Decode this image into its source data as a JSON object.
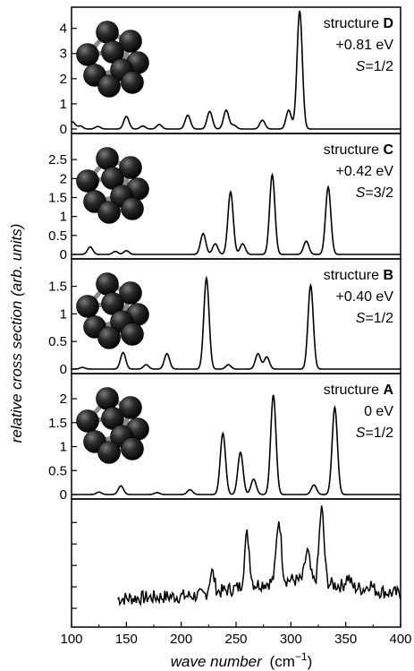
{
  "chart_data": {
    "type": "line",
    "xlabel": "wave number",
    "xlabel_unit_prefix": "(cm",
    "xlabel_unit_exp": "−1",
    "xlabel_unit_suffix": ")",
    "ylabel": "relative cross section (arb. units)",
    "xlim": [
      100,
      400
    ],
    "x_ticks": [
      100,
      150,
      200,
      250,
      300,
      350,
      400
    ],
    "peak_width_cm1": 2.4,
    "panels": [
      {
        "id": "D",
        "label_prefix": "structure",
        "structure": "D",
        "energy": "+0.81 eV",
        "spin_prefix": "S",
        "spin_value": "=1/2",
        "ylim": [
          0,
          4.7
        ],
        "y_ticks": [
          0,
          1,
          2,
          3,
          4
        ],
        "peaks": [
          [
            101,
            0.28
          ],
          [
            108,
            0.12
          ],
          [
            124,
            0.1
          ],
          [
            150,
            0.5
          ],
          [
            165,
            0.12
          ],
          [
            180,
            0.18
          ],
          [
            206,
            0.55
          ],
          [
            226,
            0.7
          ],
          [
            241,
            0.75
          ],
          [
            248,
            0.15
          ],
          [
            274,
            0.35
          ],
          [
            298,
            0.75
          ],
          [
            308,
            4.7
          ]
        ]
      },
      {
        "id": "C",
        "label_prefix": "structure",
        "structure": "C",
        "energy": "+0.42 eV",
        "spin_prefix": "S",
        "spin_value": "=3/2",
        "ylim": [
          0,
          3.0
        ],
        "y_ticks": [
          0,
          0.5,
          1,
          1.5,
          2,
          2.5
        ],
        "peaks": [
          [
            117,
            0.2
          ],
          [
            140,
            0.08
          ],
          [
            150,
            0.1
          ],
          [
            220,
            0.55
          ],
          [
            231,
            0.28
          ],
          [
            245,
            1.65
          ],
          [
            256,
            0.28
          ],
          [
            283,
            2.1
          ],
          [
            314,
            0.35
          ],
          [
            334,
            1.78
          ]
        ]
      },
      {
        "id": "B",
        "label_prefix": "structure",
        "structure": "B",
        "energy": "+0.40 eV",
        "spin_prefix": "S",
        "spin_value": "=1/2",
        "ylim": [
          0,
          1.85
        ],
        "y_ticks": [
          0,
          0.5,
          1,
          1.5
        ],
        "peaks": [
          [
            110,
            0.03
          ],
          [
            147,
            0.3
          ],
          [
            168,
            0.08
          ],
          [
            187,
            0.28
          ],
          [
            223,
            1.65
          ],
          [
            243,
            0.08
          ],
          [
            270,
            0.28
          ],
          [
            278,
            0.22
          ],
          [
            318,
            1.52
          ]
        ]
      },
      {
        "id": "A",
        "label_prefix": "structure",
        "structure": "A",
        "energy": "0 eV",
        "spin_prefix": "S",
        "spin_value": "=1/2",
        "ylim": [
          0,
          2.45
        ],
        "y_ticks": [
          0,
          0.5,
          1,
          1.5,
          2
        ],
        "peaks": [
          [
            125,
            0.05
          ],
          [
            145,
            0.18
          ],
          [
            178,
            0.04
          ],
          [
            208,
            0.1
          ],
          [
            238,
            1.28
          ],
          [
            254,
            0.88
          ],
          [
            266,
            0.32
          ],
          [
            284,
            2.08
          ],
          [
            321,
            0.2
          ],
          [
            340,
            1.82
          ]
        ]
      },
      {
        "id": "exp",
        "ylim": [
          0,
          1.0
        ],
        "experimental": true,
        "x_start": 142,
        "noise_level": 0.06,
        "baseline": [
          [
            142,
            0.2
          ],
          [
            220,
            0.23
          ],
          [
            260,
            0.31
          ],
          [
            300,
            0.36
          ],
          [
            330,
            0.33
          ],
          [
            400,
            0.24
          ]
        ],
        "peaks": [
          [
            228,
            0.18
          ],
          [
            260,
            0.43
          ],
          [
            289,
            0.52
          ],
          [
            315,
            0.25
          ],
          [
            328,
            0.62
          ],
          [
            352,
            0.08
          ],
          [
            372,
            0.05
          ]
        ]
      }
    ]
  }
}
